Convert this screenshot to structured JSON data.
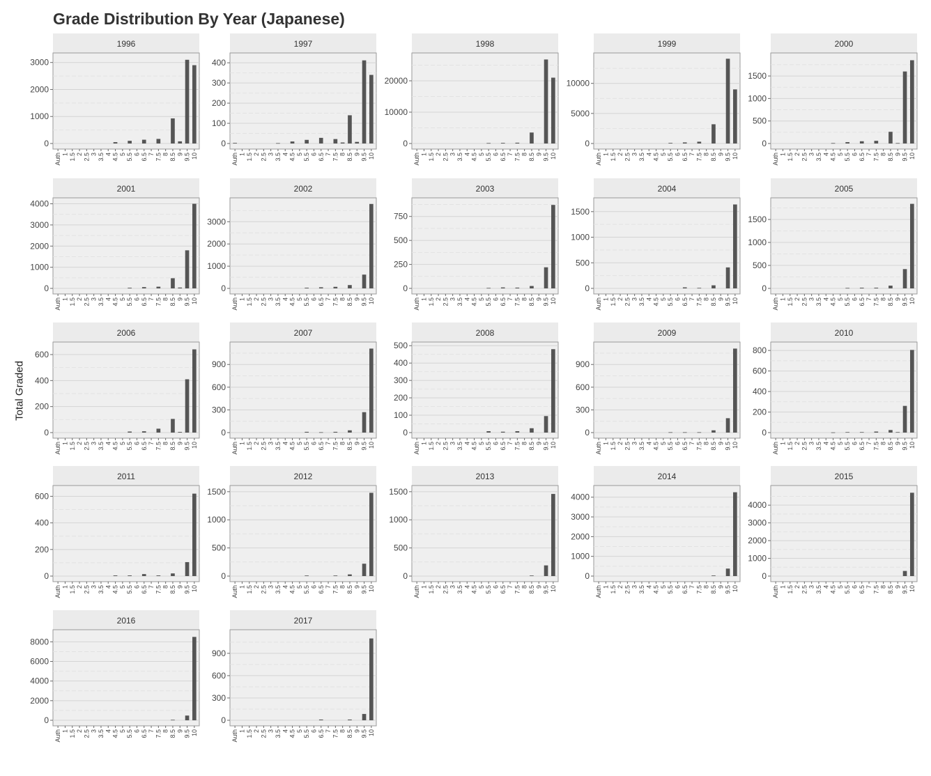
{
  "title": "Grade Distribution By Year (Japanese)",
  "colors": {
    "panel_bg": "#efefef",
    "strip_bg": "#ebebeb",
    "bar": "#555555",
    "grid_major": "#d4d4d4",
    "grid_minor": "#e2e2e2",
    "border": "#999999"
  },
  "chart_data": {
    "type": "bar",
    "layout": "faceted small multiples, 5 columns",
    "title": "Grade Distribution By Year (Japanese)",
    "ylabel": "Total Graded",
    "xlabel": "",
    "grid": true,
    "y_scale": "free per facet",
    "categories": [
      "Auth",
      "1",
      "1.5",
      "2",
      "2.5",
      "3",
      "3.5",
      "4",
      "4.5",
      "5",
      "5.5",
      "6",
      "6.5",
      "7",
      "7.5",
      "8",
      "8.5",
      "9",
      "9.5",
      "10"
    ],
    "facets": [
      {
        "label": "1996",
        "yticks": [
          0,
          1000,
          2000,
          3000
        ],
        "ylim": [
          0,
          3250
        ],
        "values": [
          0,
          0,
          0,
          0,
          0,
          0,
          0,
          0,
          50,
          0,
          100,
          0,
          140,
          0,
          170,
          0,
          930,
          80,
          3100,
          2900
        ]
      },
      {
        "label": "1997",
        "yticks": [
          0,
          100,
          200,
          300,
          400
        ],
        "ylim": [
          0,
          435
        ],
        "values": [
          3,
          0,
          0,
          0,
          0,
          0,
          2,
          0,
          10,
          0,
          18,
          0,
          28,
          0,
          22,
          5,
          140,
          8,
          412,
          340
        ]
      },
      {
        "label": "1998",
        "yticks": [
          0,
          10000,
          20000
        ],
        "ylim": [
          0,
          28000
        ],
        "values": [
          0,
          0,
          0,
          0,
          0,
          0,
          0,
          0,
          0,
          0,
          150,
          0,
          200,
          0,
          250,
          0,
          3500,
          0,
          26800,
          21000
        ]
      },
      {
        "label": "1999",
        "yticks": [
          0,
          5000,
          10000
        ],
        "ylim": [
          0,
          14600
        ],
        "values": [
          0,
          0,
          0,
          0,
          0,
          0,
          0,
          0,
          0,
          0,
          100,
          0,
          180,
          0,
          300,
          0,
          3200,
          0,
          14100,
          9000
        ]
      },
      {
        "label": "2000",
        "yticks": [
          0,
          500,
          1000,
          1500
        ],
        "ylim": [
          0,
          1950
        ],
        "values": [
          0,
          0,
          0,
          0,
          0,
          0,
          0,
          0,
          10,
          0,
          30,
          0,
          50,
          0,
          60,
          0,
          260,
          10,
          1600,
          1850
        ]
      },
      {
        "label": "2001",
        "yticks": [
          0,
          1000,
          2000,
          3000,
          4000
        ],
        "ylim": [
          0,
          4150
        ],
        "values": [
          0,
          0,
          0,
          0,
          0,
          0,
          0,
          0,
          0,
          0,
          30,
          0,
          60,
          0,
          80,
          0,
          480,
          40,
          1800,
          4000
        ]
      },
      {
        "label": "2002",
        "yticks": [
          0,
          1000,
          2000,
          3000
        ],
        "ylim": [
          0,
          3950
        ],
        "values": [
          0,
          0,
          0,
          0,
          0,
          0,
          0,
          0,
          0,
          0,
          30,
          0,
          50,
          0,
          70,
          0,
          150,
          0,
          620,
          3800
        ]
      },
      {
        "label": "2003",
        "yticks": [
          0,
          250,
          500,
          750
        ],
        "ylim": [
          0,
          915
        ],
        "values": [
          0,
          0,
          0,
          0,
          0,
          0,
          0,
          0,
          0,
          0,
          5,
          0,
          10,
          0,
          8,
          0,
          25,
          0,
          220,
          870
        ]
      },
      {
        "label": "2004",
        "yticks": [
          0,
          500,
          1000,
          1500
        ],
        "ylim": [
          0,
          1715
        ],
        "values": [
          0,
          0,
          0,
          0,
          0,
          0,
          0,
          0,
          0,
          0,
          0,
          0,
          20,
          0,
          10,
          0,
          60,
          0,
          410,
          1640
        ]
      },
      {
        "label": "2005",
        "yticks": [
          0,
          500,
          1000,
          1500
        ],
        "ylim": [
          0,
          1910
        ],
        "values": [
          0,
          0,
          0,
          0,
          0,
          0,
          0,
          0,
          0,
          0,
          10,
          0,
          15,
          0,
          15,
          0,
          60,
          0,
          420,
          1840
        ]
      },
      {
        "label": "2006",
        "yticks": [
          0,
          200,
          400,
          600
        ],
        "ylim": [
          0,
          675
        ],
        "values": [
          0,
          0,
          0,
          0,
          0,
          0,
          0,
          0,
          0,
          0,
          8,
          0,
          10,
          0,
          30,
          0,
          105,
          5,
          410,
          640
        ]
      },
      {
        "label": "2007",
        "yticks": [
          0,
          300,
          600,
          900
        ],
        "ylim": [
          0,
          1160
        ],
        "values": [
          0,
          0,
          0,
          0,
          0,
          0,
          0,
          0,
          0,
          0,
          10,
          0,
          5,
          0,
          10,
          0,
          30,
          0,
          270,
          1110
        ]
      },
      {
        "label": "2008",
        "yticks": [
          0,
          100,
          200,
          300,
          400,
          500
        ],
        "ylim": [
          0,
          505
        ],
        "values": [
          0,
          0,
          0,
          0,
          0,
          0,
          0,
          0,
          0,
          0,
          8,
          0,
          5,
          0,
          8,
          0,
          25,
          0,
          95,
          480
        ]
      },
      {
        "label": "2009",
        "yticks": [
          0,
          300,
          600,
          900
        ],
        "ylim": [
          0,
          1160
        ],
        "values": [
          0,
          0,
          0,
          0,
          0,
          0,
          0,
          0,
          0,
          0,
          5,
          0,
          5,
          0,
          5,
          0,
          30,
          0,
          190,
          1110
        ]
      },
      {
        "label": "2010",
        "yticks": [
          0,
          200,
          400,
          600,
          800
        ],
        "ylim": [
          0,
          855
        ],
        "values": [
          0,
          0,
          0,
          0,
          0,
          0,
          0,
          0,
          2,
          0,
          5,
          0,
          5,
          0,
          10,
          0,
          25,
          5,
          260,
          805
        ]
      },
      {
        "label": "2011",
        "yticks": [
          0,
          200,
          400,
          600
        ],
        "ylim": [
          0,
          660
        ],
        "values": [
          0,
          0,
          0,
          0,
          0,
          0,
          0,
          0,
          5,
          0,
          5,
          0,
          15,
          0,
          5,
          0,
          20,
          0,
          105,
          620
        ]
      },
      {
        "label": "2012",
        "yticks": [
          0,
          500,
          1000,
          1500
        ],
        "ylim": [
          0,
          1560
        ],
        "values": [
          0,
          0,
          0,
          0,
          0,
          0,
          0,
          0,
          0,
          0,
          10,
          0,
          0,
          0,
          10,
          0,
          30,
          0,
          220,
          1480
        ]
      },
      {
        "label": "2013",
        "yticks": [
          0,
          500,
          1000,
          1500
        ],
        "ylim": [
          0,
          1560
        ],
        "values": [
          0,
          0,
          0,
          0,
          0,
          0,
          0,
          0,
          0,
          0,
          0,
          0,
          0,
          0,
          0,
          0,
          10,
          0,
          190,
          1460
        ]
      },
      {
        "label": "2014",
        "yticks": [
          0,
          1000,
          2000,
          3000,
          4000
        ],
        "ylim": [
          0,
          4450
        ],
        "values": [
          0,
          0,
          0,
          0,
          0,
          0,
          0,
          0,
          0,
          0,
          0,
          0,
          0,
          0,
          0,
          0,
          30,
          0,
          380,
          4250
        ]
      },
      {
        "label": "2015",
        "yticks": [
          0,
          1000,
          2000,
          3000,
          4000
        ],
        "ylim": [
          0,
          4950
        ],
        "values": [
          0,
          0,
          0,
          0,
          0,
          0,
          0,
          0,
          0,
          0,
          0,
          0,
          0,
          0,
          0,
          0,
          0,
          0,
          290,
          4700
        ]
      },
      {
        "label": "2016",
        "yticks": [
          0,
          2000,
          4000,
          6000,
          8000
        ],
        "ylim": [
          0,
          8950
        ],
        "values": [
          0,
          0,
          0,
          0,
          0,
          0,
          0,
          0,
          0,
          0,
          0,
          0,
          0,
          0,
          0,
          0,
          50,
          0,
          480,
          8500
        ]
      },
      {
        "label": "2017",
        "yticks": [
          0,
          300,
          600,
          900
        ],
        "ylim": [
          0,
          1180
        ],
        "values": [
          0,
          0,
          0,
          0,
          0,
          0,
          0,
          0,
          0,
          0,
          0,
          0,
          10,
          0,
          0,
          0,
          10,
          0,
          85,
          1100
        ]
      }
    ]
  }
}
